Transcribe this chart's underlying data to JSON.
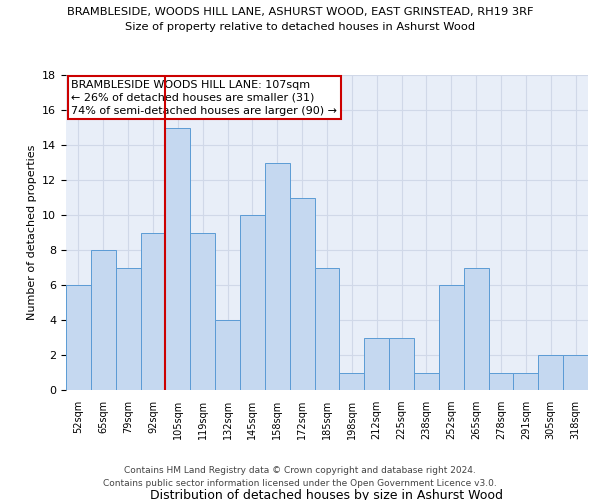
{
  "title1": "BRAMBLESIDE, WOODS HILL LANE, ASHURST WOOD, EAST GRINSTEAD, RH19 3RF",
  "title2": "Size of property relative to detached houses in Ashurst Wood",
  "xlabel": "Distribution of detached houses by size in Ashurst Wood",
  "ylabel": "Number of detached properties",
  "categories": [
    "52sqm",
    "65sqm",
    "79sqm",
    "92sqm",
    "105sqm",
    "119sqm",
    "132sqm",
    "145sqm",
    "158sqm",
    "172sqm",
    "185sqm",
    "198sqm",
    "212sqm",
    "225sqm",
    "238sqm",
    "252sqm",
    "265sqm",
    "278sqm",
    "291sqm",
    "305sqm",
    "318sqm"
  ],
  "values": [
    6,
    8,
    7,
    9,
    15,
    9,
    4,
    10,
    13,
    11,
    7,
    1,
    3,
    3,
    1,
    6,
    7,
    1,
    1,
    2,
    2
  ],
  "bar_color": "#c5d8f0",
  "bar_edge_color": "#5b9bd5",
  "highlight_index": 4,
  "highlight_line_color": "#cc0000",
  "annotation_lines": [
    "BRAMBLESIDE WOODS HILL LANE: 107sqm",
    "← 26% of detached houses are smaller (31)",
    "74% of semi-detached houses are larger (90) →"
  ],
  "annotation_box_edge": "#cc0000",
  "ylim": [
    0,
    18
  ],
  "yticks": [
    0,
    2,
    4,
    6,
    8,
    10,
    12,
    14,
    16,
    18
  ],
  "footer1": "Contains HM Land Registry data © Crown copyright and database right 2024.",
  "footer2": "Contains public sector information licensed under the Open Government Licence v3.0.",
  "grid_color": "#d0d8e8",
  "plot_bg_color": "#e8eef8",
  "background_color": "#ffffff"
}
